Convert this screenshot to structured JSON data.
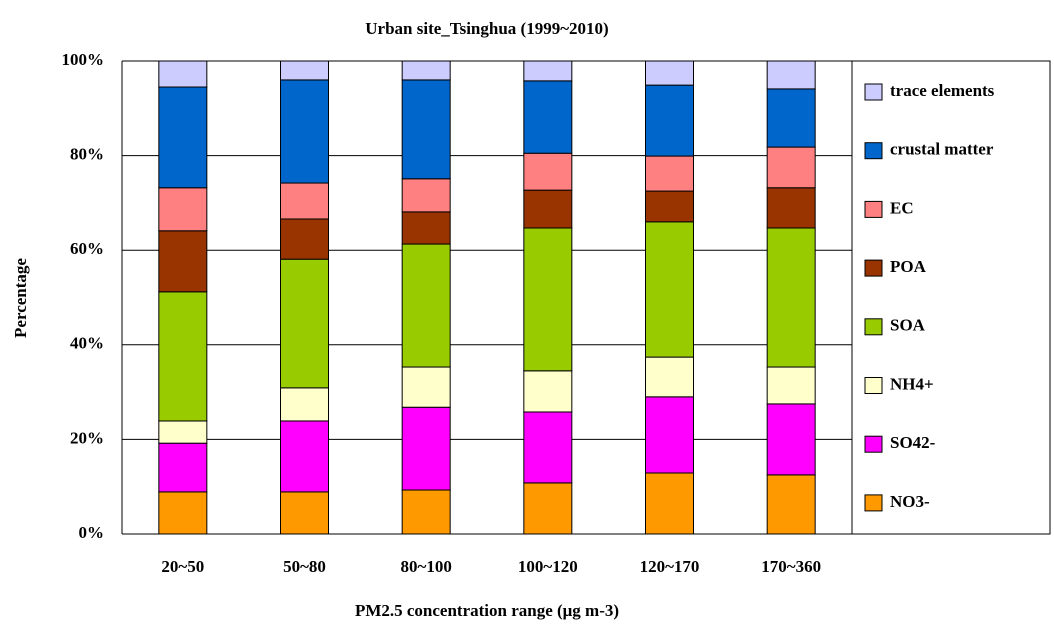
{
  "chart_data": {
    "type": "stacked_bar",
    "title": "Urban site_Tsinghua (1999~2010)",
    "y_label": "Percentage",
    "x_label": "PM2.5 concentration range (μg m-3)",
    "categories": [
      "20~50",
      "50~80",
      "80~100",
      "100~120",
      "120~170",
      "170~360"
    ],
    "series": [
      {
        "name": "NO3-",
        "color": "#ff9900",
        "values": [
          8.9,
          8.9,
          9.3,
          10.8,
          12.9,
          12.5
        ]
      },
      {
        "name": "SO42-",
        "color": "#ff00ff",
        "values": [
          10.3,
          15.0,
          17.5,
          15.0,
          16.1,
          15.0
        ]
      },
      {
        "name": "NH4+",
        "color": "#ffffcc",
        "values": [
          4.7,
          7.0,
          8.5,
          8.7,
          8.4,
          7.8
        ]
      },
      {
        "name": "SOA",
        "color": "#99cc00",
        "values": [
          27.3,
          27.2,
          26.0,
          30.2,
          28.6,
          29.4
        ]
      },
      {
        "name": "POA",
        "color": "#993300",
        "values": [
          12.9,
          8.5,
          6.8,
          8.0,
          6.5,
          8.5
        ]
      },
      {
        "name": "EC",
        "color": "#ff8080",
        "values": [
          9.1,
          7.6,
          7.0,
          7.8,
          7.4,
          8.6
        ]
      },
      {
        "name": "crustal matter",
        "color": "#0066cc",
        "values": [
          21.3,
          21.8,
          20.9,
          15.3,
          15.0,
          12.3
        ]
      },
      {
        "name": "trace elements",
        "color": "#ccccff",
        "values": [
          5.5,
          4.0,
          4.0,
          4.2,
          5.1,
          5.9
        ]
      }
    ],
    "ylim": [
      0,
      100
    ],
    "yticks": [
      {
        "value": 0,
        "label": "0%"
      },
      {
        "value": 20,
        "label": "20%"
      },
      {
        "value": 40,
        "label": "40%"
      },
      {
        "value": 60,
        "label": "60%"
      },
      {
        "value": 80,
        "label": "80%"
      },
      {
        "value": 100,
        "label": "100%"
      }
    ],
    "grid": true,
    "legend": "right"
  }
}
